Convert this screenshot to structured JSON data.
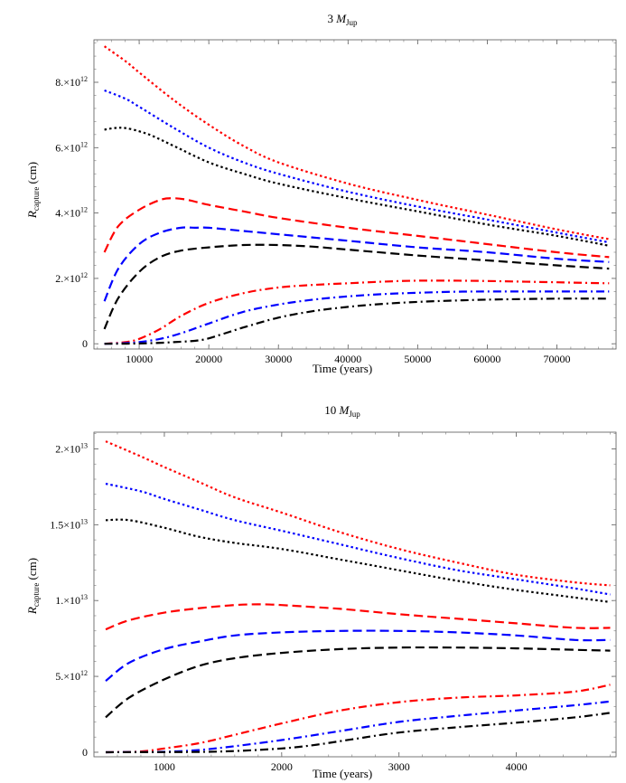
{
  "chart_data": [
    {
      "type": "line",
      "title_prefix": "3 ",
      "title_var": "M",
      "title_sub": "Jup",
      "xlabel": "Time (years)",
      "ylabel_var": "R",
      "ylabel_sub": "capture",
      "ylabel_unit": " (cm)",
      "xlim": [
        3500,
        78500
      ],
      "ylim": [
        -160000000000.0,
        9300000000000.0
      ],
      "x_ticks": [
        10000,
        20000,
        30000,
        40000,
        50000,
        60000,
        70000
      ],
      "x_tick_labels": [
        "10000",
        "20000",
        "30000",
        "40000",
        "50000",
        "60000",
        "70000"
      ],
      "y_ticks": [
        0,
        2000000000000.0,
        4000000000000.0,
        6000000000000.0,
        8000000000000.0
      ],
      "y_tick_labels": [
        {
          "mant": "0",
          "exp": ""
        },
        {
          "mant": "2.×10",
          "exp": "12"
        },
        {
          "mant": "4.×10",
          "exp": "12"
        },
        {
          "mant": "6.×10",
          "exp": "12"
        },
        {
          "mant": "8.×10",
          "exp": "12"
        }
      ],
      "series": [
        {
          "color": "#ff0000",
          "dash": "dot",
          "x": [
            5000,
            8000,
            10000,
            15000,
            20000,
            25000,
            30000,
            40000,
            50000,
            60000,
            70000,
            77500
          ],
          "y": [
            9100000000000.0,
            8650000000000.0,
            8300000000000.0,
            7450000000000.0,
            6700000000000.0,
            6050000000000.0,
            5550000000000.0,
            4900000000000.0,
            4400000000000.0,
            3950000000000.0,
            3500000000000.0,
            3200000000000.0
          ]
        },
        {
          "color": "#0000ff",
          "dash": "dot",
          "x": [
            5000,
            8000,
            10000,
            15000,
            20000,
            25000,
            30000,
            40000,
            50000,
            60000,
            70000,
            77500
          ],
          "y": [
            7750000000000.0,
            7500000000000.0,
            7250000000000.0,
            6600000000000.0,
            6000000000000.0,
            5550000000000.0,
            5200000000000.0,
            4650000000000.0,
            4200000000000.0,
            3800000000000.0,
            3400000000000.0,
            3100000000000.0
          ]
        },
        {
          "color": "#000000",
          "dash": "dot",
          "x": [
            5000,
            6500,
            8000,
            10000,
            12000,
            15000,
            20000,
            25000,
            30000,
            40000,
            50000,
            60000,
            70000,
            77500
          ],
          "y": [
            6550000000000.0,
            6600000000000.0,
            6600000000000.0,
            6500000000000.0,
            6350000000000.0,
            6050000000000.0,
            5550000000000.0,
            5200000000000.0,
            4900000000000.0,
            4450000000000.0,
            4050000000000.0,
            3650000000000.0,
            3300000000000.0,
            3000000000000.0
          ]
        },
        {
          "color": "#ff0000",
          "dash": "dash",
          "x": [
            5000,
            7000,
            10000,
            13000,
            15000,
            17000,
            20000,
            25000,
            30000,
            40000,
            50000,
            60000,
            70000,
            77500
          ],
          "y": [
            2800000000000.0,
            3600000000000.0,
            4100000000000.0,
            4400000000000.0,
            4450000000000.0,
            4400000000000.0,
            4250000000000.0,
            4050000000000.0,
            3850000000000.0,
            3550000000000.0,
            3300000000000.0,
            3050000000000.0,
            2800000000000.0,
            2650000000000.0
          ]
        },
        {
          "color": "#0000ff",
          "dash": "dash",
          "x": [
            5000,
            7000,
            10000,
            13000,
            16000,
            18000,
            20000,
            25000,
            30000,
            40000,
            50000,
            60000,
            70000,
            77500
          ],
          "y": [
            1300000000000.0,
            2300000000000.0,
            3050000000000.0,
            3400000000000.0,
            3550000000000.0,
            3550000000000.0,
            3550000000000.0,
            3450000000000.0,
            3350000000000.0,
            3150000000000.0,
            2950000000000.0,
            2800000000000.0,
            2600000000000.0,
            2500000000000.0
          ]
        },
        {
          "color": "#000000",
          "dash": "dash",
          "x": [
            5000,
            7000,
            10000,
            13000,
            16000,
            20000,
            25000,
            30000,
            35000,
            40000,
            50000,
            60000,
            70000,
            77500
          ],
          "y": [
            450000000000.0,
            1400000000000.0,
            2200000000000.0,
            2650000000000.0,
            2850000000000.0,
            2950000000000.0,
            3020000000000.0,
            3020000000000.0,
            2970000000000.0,
            2880000000000.0,
            2700000000000.0,
            2550000000000.0,
            2400000000000.0,
            2300000000000.0
          ]
        },
        {
          "color": "#ff0000",
          "dash": "dashdot",
          "x": [
            5000,
            8000,
            10000,
            13000,
            16000,
            20000,
            25000,
            30000,
            35000,
            40000,
            45000,
            50000,
            55000,
            60000,
            70000,
            77500
          ],
          "y": [
            0,
            50000000000.0,
            150000000000.0,
            450000000000.0,
            850000000000.0,
            1250000000000.0,
            1550000000000.0,
            1720000000000.0,
            1800000000000.0,
            1850000000000.0,
            1900000000000.0,
            1930000000000.0,
            1930000000000.0,
            1920000000000.0,
            1880000000000.0,
            1850000000000.0
          ]
        },
        {
          "color": "#0000ff",
          "dash": "dashdot",
          "x": [
            5000,
            8000,
            10000,
            13000,
            16000,
            20000,
            25000,
            30000,
            35000,
            40000,
            45000,
            50000,
            55000,
            60000,
            70000,
            77500
          ],
          "y": [
            0,
            20000000000.0,
            50000000000.0,
            150000000000.0,
            320000000000.0,
            620000000000.0,
            980000000000.0,
            1200000000000.0,
            1350000000000.0,
            1450000000000.0,
            1520000000000.0,
            1560000000000.0,
            1590000000000.0,
            1600000000000.0,
            1600000000000.0,
            1600000000000.0
          ]
        },
        {
          "color": "#000000",
          "dash": "dashdot",
          "x": [
            5000,
            10000,
            15000,
            19000,
            22000,
            25000,
            30000,
            35000,
            40000,
            45000,
            50000,
            55000,
            60000,
            70000,
            77500
          ],
          "y": [
            0,
            10000000000.0,
            50000000000.0,
            120000000000.0,
            300000000000.0,
            500000000000.0,
            800000000000.0,
            1000000000000.0,
            1130000000000.0,
            1220000000000.0,
            1280000000000.0,
            1320000000000.0,
            1350000000000.0,
            1380000000000.0,
            1380000000000.0
          ]
        }
      ]
    },
    {
      "type": "line",
      "title_prefix": "10 ",
      "title_var": "M",
      "title_sub": "Jup",
      "xlabel": "Time (years)",
      "ylabel_var": "R",
      "ylabel_sub": "capture",
      "ylabel_unit": " (cm)",
      "xlim": [
        400,
        4850
      ],
      "ylim": [
        -300000000000.0,
        21100000000000.0
      ],
      "x_ticks": [
        1000,
        2000,
        3000,
        4000
      ],
      "x_tick_labels": [
        "1000",
        "2000",
        "3000",
        "4000"
      ],
      "y_ticks": [
        0,
        5000000000000.0,
        10000000000000.0,
        15000000000000.0,
        20000000000000.0
      ],
      "y_tick_labels": [
        {
          "mant": "0",
          "exp": ""
        },
        {
          "mant": "5.×10",
          "exp": "12"
        },
        {
          "mant": "1.×10",
          "exp": "13"
        },
        {
          "mant": "1.5×10",
          "exp": "13"
        },
        {
          "mant": "2.×10",
          "exp": "13"
        }
      ],
      "series": [
        {
          "color": "#ff0000",
          "dash": "dot",
          "x": [
            500,
            800,
            1000,
            1300,
            1600,
            2000,
            2500,
            3000,
            3500,
            4000,
            4500,
            4800
          ],
          "y": [
            20500000000000.0,
            19500000000000.0,
            18800000000000.0,
            17800000000000.0,
            16800000000000.0,
            15800000000000.0,
            14500000000000.0,
            13400000000000.0,
            12500000000000.0,
            11700000000000.0,
            11200000000000.0,
            11000000000000.0
          ]
        },
        {
          "color": "#0000ff",
          "dash": "dot",
          "x": [
            500,
            800,
            1000,
            1300,
            1600,
            2000,
            2500,
            3000,
            3500,
            4000,
            4500,
            4800
          ],
          "y": [
            17700000000000.0,
            17200000000000.0,
            16700000000000.0,
            16000000000000.0,
            15300000000000.0,
            14600000000000.0,
            13700000000000.0,
            12800000000000.0,
            12000000000000.0,
            11400000000000.0,
            10800000000000.0,
            10400000000000.0
          ]
        },
        {
          "color": "#000000",
          "dash": "dot",
          "x": [
            500,
            700,
            1000,
            1300,
            1600,
            2000,
            2500,
            3000,
            3500,
            4000,
            4500,
            4800
          ],
          "y": [
            15300000000000.0,
            15300000000000.0,
            14800000000000.0,
            14200000000000.0,
            13800000000000.0,
            13400000000000.0,
            12700000000000.0,
            12000000000000.0,
            11300000000000.0,
            10700000000000.0,
            10200000000000.0,
            9900000000000.0
          ]
        },
        {
          "color": "#ff0000",
          "dash": "dash",
          "x": [
            500,
            700,
            1000,
            1300,
            1600,
            1800,
            2000,
            2500,
            3000,
            3500,
            4000,
            4500,
            4800
          ],
          "y": [
            8100000000000.0,
            8700000000000.0,
            9200000000000.0,
            9500000000000.0,
            9700000000000.0,
            9750000000000.0,
            9700000000000.0,
            9450000000000.0,
            9100000000000.0,
            8800000000000.0,
            8500000000000.0,
            8200000000000.0,
            8200000000000.0
          ]
        },
        {
          "color": "#0000ff",
          "dash": "dash",
          "x": [
            500,
            700,
            1000,
            1300,
            1600,
            2000,
            2500,
            3000,
            3500,
            4000,
            4500,
            4800
          ],
          "y": [
            4700000000000.0,
            5900000000000.0,
            6800000000000.0,
            7300000000000.0,
            7700000000000.0,
            7900000000000.0,
            8000000000000.0,
            8000000000000.0,
            7900000000000.0,
            7700000000000.0,
            7400000000000.0,
            7400000000000.0
          ]
        },
        {
          "color": "#000000",
          "dash": "dash",
          "x": [
            500,
            700,
            1000,
            1300,
            1600,
            2000,
            2500,
            3000,
            3500,
            4000,
            4500,
            4800
          ],
          "y": [
            2300000000000.0,
            3600000000000.0,
            4800000000000.0,
            5700000000000.0,
            6200000000000.0,
            6550000000000.0,
            6800000000000.0,
            6900000000000.0,
            6900000000000.0,
            6850000000000.0,
            6750000000000.0,
            6700000000000.0
          ]
        },
        {
          "color": "#ff0000",
          "dash": "dashdot",
          "x": [
            500,
            800,
            1000,
            1300,
            1600,
            2000,
            2500,
            3000,
            3500,
            4000,
            4500,
            4800
          ],
          "y": [
            0,
            50000000000.0,
            250000000000.0,
            600000000000.0,
            1150000000000.0,
            1900000000000.0,
            2750000000000.0,
            3300000000000.0,
            3600000000000.0,
            3750000000000.0,
            4000000000000.0,
            4450000000000.0
          ]
        },
        {
          "color": "#0000ff",
          "dash": "dashdot",
          "x": [
            500,
            1000,
            1300,
            1600,
            2000,
            2500,
            3000,
            3500,
            4000,
            4500,
            4800
          ],
          "y": [
            0,
            30000000000.0,
            150000000000.0,
            400000000000.0,
            800000000000.0,
            1400000000000.0,
            2000000000000.0,
            2400000000000.0,
            2750000000000.0,
            3100000000000.0,
            3350000000000.0
          ]
        },
        {
          "color": "#000000",
          "dash": "dashdot",
          "x": [
            500,
            1000,
            1500,
            2000,
            2300,
            2600,
            3000,
            3500,
            4000,
            4500,
            4800
          ],
          "y": [
            0,
            10000000000.0,
            50000000000.0,
            250000000000.0,
            500000000000.0,
            850000000000.0,
            1300000000000.0,
            1650000000000.0,
            1950000000000.0,
            2300000000000.0,
            2600000000000.0
          ]
        }
      ]
    }
  ]
}
